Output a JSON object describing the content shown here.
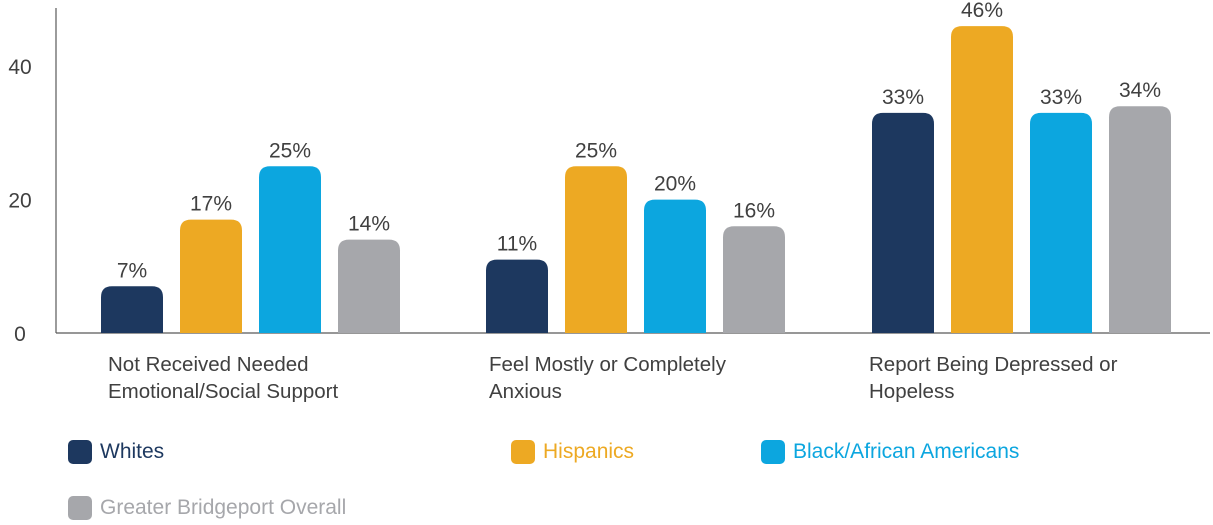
{
  "chart_data": {
    "type": "bar",
    "categories": [
      "Not Received Needed Emotional/Social Support",
      "Feel Mostly or Completely Anxious",
      "Report Being Depressed or Hopeless"
    ],
    "series": [
      {
        "name": "Whites",
        "values": [
          7,
          11,
          33
        ],
        "labels": [
          "7%",
          "11%",
          "33%"
        ],
        "color": "#1d385f"
      },
      {
        "name": "Hispanics",
        "values": [
          17,
          25,
          46
        ],
        "labels": [
          "17%",
          "25%",
          "46%"
        ],
        "color": "#eda923"
      },
      {
        "name": "Black/African Americans",
        "values": [
          25,
          20,
          33
        ],
        "labels": [
          "25%",
          "20%",
          "33%"
        ],
        "color": "#0ca6df"
      },
      {
        "name": "Greater Bridgeport Overall",
        "values": [
          14,
          16,
          34
        ],
        "labels": [
          "14%",
          "16%",
          "34%"
        ],
        "color": "#a6a7ab"
      }
    ],
    "yticks": [
      "0",
      "20",
      "40"
    ],
    "ylim": [
      0,
      47
    ],
    "grid": false,
    "legend_position": "bottom"
  },
  "legend": {
    "items": [
      {
        "label": "Whites",
        "color": "#1d385f"
      },
      {
        "label": "Hispanics",
        "color": "#eda923"
      },
      {
        "label": "Black/African Americans",
        "color": "#0ca6df"
      },
      {
        "label": "Greater Bridgeport Overall",
        "color": "#a6a7ab"
      }
    ]
  },
  "colors": {
    "axis": "#595959",
    "tick_text": "#404040",
    "category_text": "#404040",
    "value_text": "#404040"
  }
}
